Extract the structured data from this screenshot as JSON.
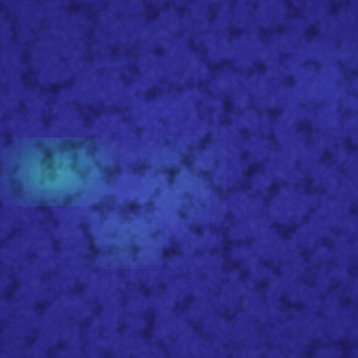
{
  "image": {
    "kind": "textured-leather-surface",
    "colors": {
      "base": "#2f2a8f",
      "base_dark": "#231f78",
      "base_light": "#3d35b0",
      "glow_primary": "#35c6b0",
      "glow_secondary": "#4a8fd0",
      "crease": "#1a165c",
      "highlight": "#5a54c8"
    }
  }
}
